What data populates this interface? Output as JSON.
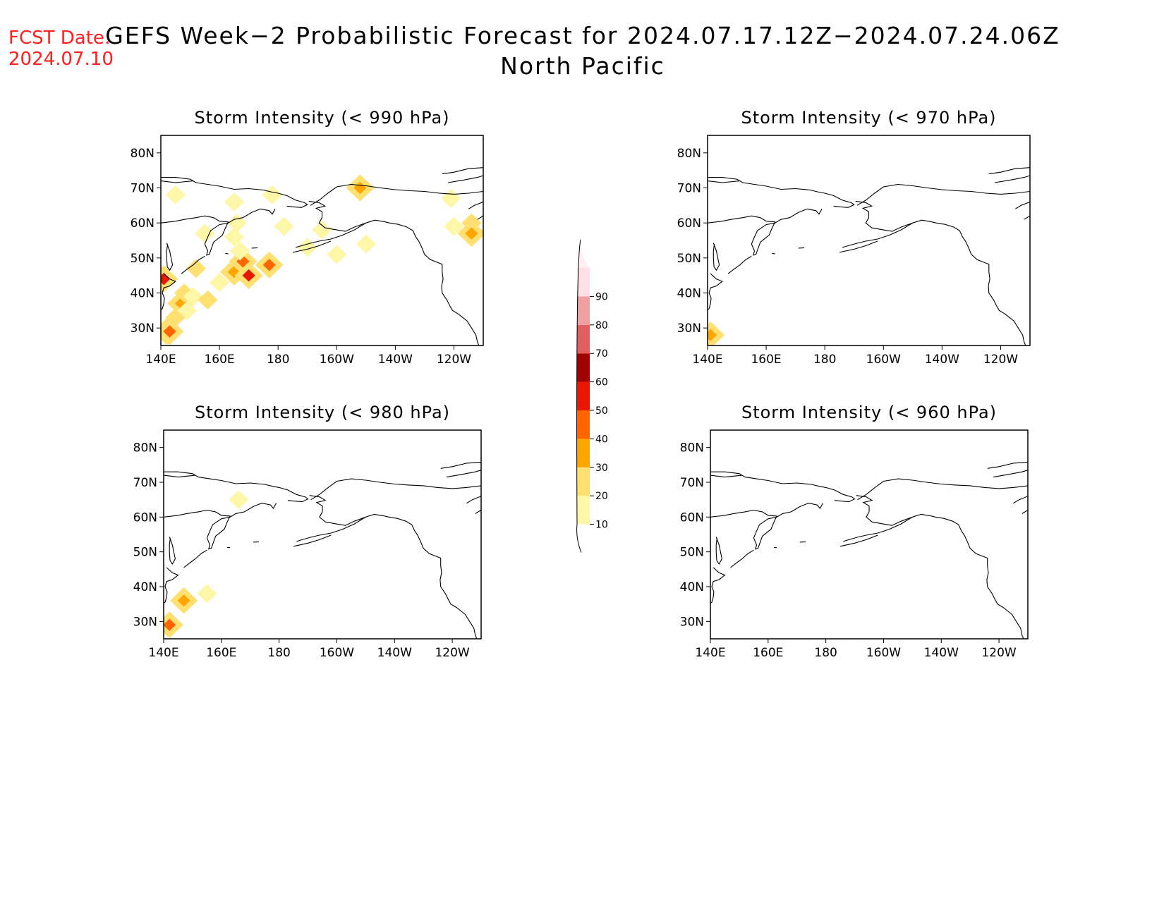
{
  "forecast_date_label": "FCST Date:",
  "forecast_date": "2024.07.10",
  "title": "GEFS Week−2 Probabilistic Forecast for 2024.07.17.12Z−2024.07.24.06Z",
  "subtitle": "North Pacific",
  "lon_ticks": [
    "140E",
    "160E",
    "180",
    "160W",
    "140W",
    "120W"
  ],
  "lat_ticks": [
    "80N",
    "70N",
    "60N",
    "50N",
    "40N",
    "30N"
  ],
  "colorbar": {
    "levels": [
      10,
      20,
      30,
      40,
      50,
      60,
      70,
      80,
      90
    ],
    "labels": [
      "10",
      "20",
      "30",
      "40",
      "50",
      "60",
      "70",
      "80",
      "90"
    ],
    "colors": [
      "#fff7a8",
      "#ffe070",
      "#ffa500",
      "#ff6600",
      "#e81800",
      "#a00000",
      "#e06060",
      "#f0a0a0",
      "#ffe0e6"
    ]
  },
  "chart_data": [
    {
      "type": "heatmap",
      "title": "Storm Intensity (< 990 hPa)",
      "xlim": [
        140,
        250
      ],
      "ylim": [
        25,
        85
      ],
      "cells": [
        [
          142,
          29,
          40
        ],
        [
          145,
          33,
          20
        ],
        [
          147,
          37,
          30
        ],
        [
          148,
          40,
          20
        ],
        [
          151,
          39,
          10
        ],
        [
          149,
          35,
          10
        ],
        [
          156,
          38,
          20
        ],
        [
          152,
          47,
          20
        ],
        [
          160,
          43,
          10
        ],
        [
          165,
          46,
          30
        ],
        [
          168,
          49,
          40
        ],
        [
          167,
          52,
          10
        ],
        [
          165,
          56,
          10
        ],
        [
          170,
          45,
          50
        ],
        [
          177,
          48,
          40
        ],
        [
          145,
          68,
          10
        ],
        [
          178,
          68,
          10
        ],
        [
          165,
          66,
          10
        ],
        [
          195,
          58,
          10
        ],
        [
          166,
          60,
          10
        ],
        [
          155,
          57,
          10
        ],
        [
          182,
          59,
          10
        ],
        [
          210,
          54,
          10
        ],
        [
          200,
          51,
          10
        ],
        [
          240,
          59,
          10
        ],
        [
          246,
          60,
          20
        ],
        [
          246,
          57,
          30
        ],
        [
          239,
          67,
          10
        ],
        [
          208,
          70,
          30
        ],
        [
          141,
          44,
          50
        ],
        [
          143,
          29,
          40
        ],
        [
          190,
          53,
          10
        ]
      ]
    },
    {
      "type": "heatmap",
      "title": "Storm Intensity (< 970 hPa)",
      "xlim": [
        140,
        250
      ],
      "ylim": [
        25,
        85
      ],
      "cells": [
        [
          141,
          28,
          30
        ]
      ]
    },
    {
      "type": "heatmap",
      "title": "Storm Intensity (< 980 hPa)",
      "xlim": [
        140,
        250
      ],
      "ylim": [
        25,
        85
      ],
      "cells": [
        [
          142,
          29,
          40
        ],
        [
          147,
          36,
          30
        ],
        [
          155,
          38,
          10
        ],
        [
          166,
          65,
          10
        ]
      ]
    },
    {
      "type": "heatmap",
      "title": "Storm Intensity (< 960 hPa)",
      "xlim": [
        140,
        250
      ],
      "ylim": [
        25,
        85
      ],
      "cells": []
    }
  ]
}
